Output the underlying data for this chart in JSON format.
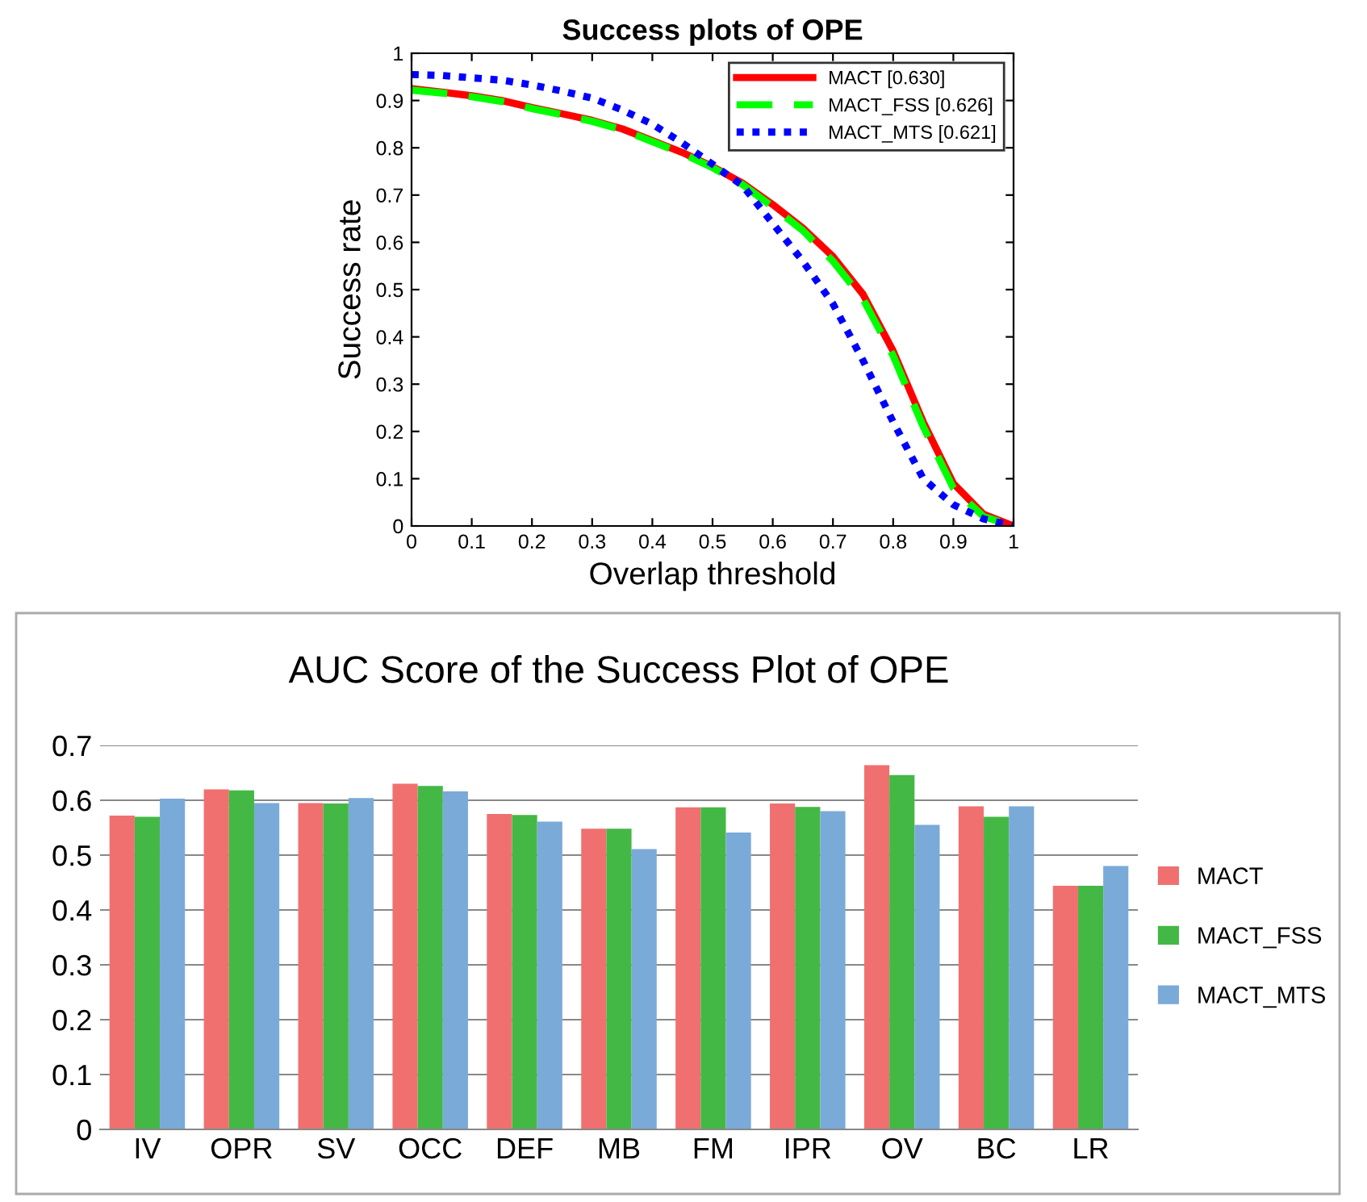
{
  "chart_data": [
    {
      "type": "line",
      "title": "Success plots of OPE",
      "xlabel": "Overlap threshold",
      "ylabel": "Success rate",
      "x": [
        0,
        0.05,
        0.1,
        0.15,
        0.2,
        0.25,
        0.3,
        0.35,
        0.4,
        0.45,
        0.5,
        0.55,
        0.6,
        0.65,
        0.7,
        0.75,
        0.8,
        0.85,
        0.9,
        0.95,
        1
      ],
      "series": [
        {
          "name": "MACT [0.630]",
          "color": "#ff0000",
          "line_style": "solid",
          "values": [
            0.925,
            0.918,
            0.91,
            0.9,
            0.885,
            0.872,
            0.858,
            0.84,
            0.815,
            0.79,
            0.76,
            0.725,
            0.68,
            0.63,
            0.57,
            0.49,
            0.37,
            0.22,
            0.09,
            0.025,
            0
          ]
        },
        {
          "name": "MACT_FSS [0.626]",
          "color": "#00ff00",
          "line_style": "dashed",
          "values": [
            0.922,
            0.916,
            0.908,
            0.898,
            0.883,
            0.87,
            0.856,
            0.838,
            0.813,
            0.788,
            0.758,
            0.722,
            0.675,
            0.625,
            0.56,
            0.48,
            0.36,
            0.21,
            0.08,
            0.02,
            0
          ]
        },
        {
          "name": "MACT_MTS [0.621]",
          "color": "#0000ff",
          "line_style": "dotted",
          "values": [
            0.955,
            0.953,
            0.948,
            0.943,
            0.933,
            0.92,
            0.905,
            0.88,
            0.85,
            0.81,
            0.765,
            0.72,
            0.64,
            0.56,
            0.47,
            0.35,
            0.22,
            0.1,
            0.045,
            0.015,
            0
          ]
        }
      ],
      "xlim": [
        0,
        1
      ],
      "ylim": [
        0,
        1
      ],
      "xticks": [
        0,
        0.1,
        0.2,
        0.3,
        0.4,
        0.5,
        0.6,
        0.7,
        0.8,
        0.9,
        1
      ],
      "yticks": [
        0,
        0.1,
        0.2,
        0.3,
        0.4,
        0.5,
        0.6,
        0.7,
        0.8,
        0.9,
        1
      ],
      "legend": "top right",
      "grid": false
    },
    {
      "type": "bar",
      "title": "AUC Score of the Success Plot of OPE",
      "categories": [
        "IV",
        "OPR",
        "SV",
        "OCC",
        "DEF",
        "MB",
        "FM",
        "IPR",
        "OV",
        "BC",
        "LR"
      ],
      "series": [
        {
          "name": "MACT",
          "color": "#f07070",
          "values": [
            0.572,
            0.62,
            0.595,
            0.63,
            0.575,
            0.548,
            0.587,
            0.594,
            0.664,
            0.589,
            0.444
          ]
        },
        {
          "name": "MACT_FSS",
          "color": "#44b844",
          "values": [
            0.57,
            0.618,
            0.594,
            0.626,
            0.573,
            0.548,
            0.587,
            0.588,
            0.646,
            0.57,
            0.444
          ]
        },
        {
          "name": "MACT_MTS",
          "color": "#7aaad8",
          "values": [
            0.603,
            0.595,
            0.604,
            0.616,
            0.561,
            0.511,
            0.541,
            0.58,
            0.555,
            0.589,
            0.48
          ]
        }
      ],
      "ylim": [
        0,
        0.7
      ],
      "yticks": [
        0,
        0.1,
        0.2,
        0.3,
        0.4,
        0.5,
        0.6,
        0.7
      ],
      "legend": "right",
      "grid": "y"
    }
  ]
}
